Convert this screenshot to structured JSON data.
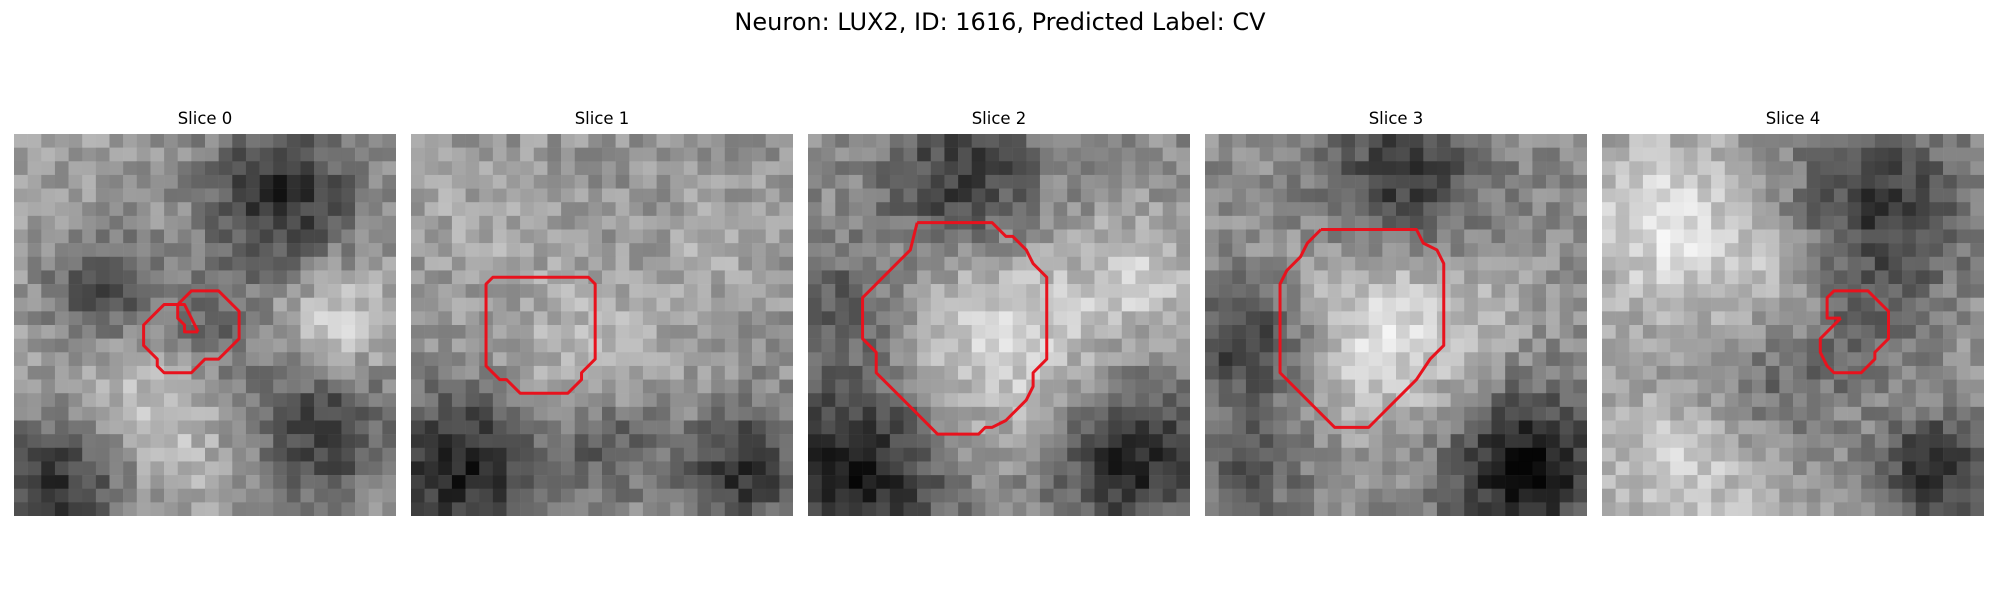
{
  "figure": {
    "title": "Neuron: LUX2, ID: 1616, Predicted Label: CV"
  },
  "colors": {
    "contour": "#e8121d",
    "background": "#ffffff"
  },
  "slices": [
    {
      "label": "Slice 0",
      "description": "Grayscale microscopy crop with a small red contour outlining a dark roundish region.",
      "contour_polygon": [
        [
          13.5,
          14.5
        ],
        [
          12.5,
          14.5
        ],
        [
          12.5,
          14.0
        ],
        [
          12.0,
          13.5
        ],
        [
          12.0,
          12.5
        ],
        [
          13.0,
          11.5
        ],
        [
          15.0,
          11.5
        ],
        [
          16.5,
          13.0
        ],
        [
          16.5,
          15.0
        ],
        [
          15.5,
          16.0
        ],
        [
          15.0,
          16.5
        ],
        [
          14.0,
          16.5
        ],
        [
          13.5,
          17.0
        ],
        [
          13.0,
          17.5
        ],
        [
          11.0,
          17.5
        ],
        [
          10.5,
          17.0
        ],
        [
          10.5,
          16.5
        ],
        [
          10.0,
          16.0
        ],
        [
          9.5,
          15.5
        ],
        [
          9.5,
          14.0
        ],
        [
          10.5,
          13.0
        ],
        [
          11.0,
          12.5
        ],
        [
          12.5,
          12.5
        ],
        [
          13.5,
          14.5
        ]
      ]
    },
    {
      "label": "Slice 1",
      "description": "Grayscale microscopy crop with a red rectangular-ish contour around a brighter central cell.",
      "contour_polygon": [
        [
          8.0,
          10.5
        ],
        [
          13.0,
          10.5
        ],
        [
          13.5,
          11.0
        ],
        [
          13.5,
          16.5
        ],
        [
          12.5,
          17.5
        ],
        [
          12.5,
          18.0
        ],
        [
          11.5,
          19.0
        ],
        [
          8.0,
          19.0
        ],
        [
          7.0,
          18.0
        ],
        [
          6.5,
          18.0
        ],
        [
          5.5,
          17.0
        ],
        [
          5.5,
          11.0
        ],
        [
          6.0,
          10.5
        ],
        [
          8.0,
          10.5
        ]
      ]
    },
    {
      "label": "Slice 2",
      "description": "Grayscale microscopy crop with a large red contour outlining a bright round cell body.",
      "contour_polygon": [
        [
          8.0,
          6.5
        ],
        [
          13.5,
          6.5
        ],
        [
          14.5,
          7.5
        ],
        [
          15.0,
          7.5
        ],
        [
          16.0,
          8.5
        ],
        [
          16.5,
          9.5
        ],
        [
          17.5,
          10.5
        ],
        [
          17.5,
          16.5
        ],
        [
          16.5,
          17.5
        ],
        [
          16.5,
          18.5
        ],
        [
          16.0,
          19.5
        ],
        [
          15.0,
          20.5
        ],
        [
          14.5,
          21.0
        ],
        [
          13.5,
          21.5
        ],
        [
          13.0,
          21.5
        ],
        [
          12.5,
          22.0
        ],
        [
          9.5,
          22.0
        ],
        [
          7.5,
          20.0
        ],
        [
          6.5,
          19.0
        ],
        [
          5.5,
          18.0
        ],
        [
          5.0,
          17.5
        ],
        [
          5.0,
          16.0
        ],
        [
          4.0,
          15.0
        ],
        [
          4.0,
          12.0
        ],
        [
          5.0,
          11.0
        ],
        [
          6.5,
          9.5
        ],
        [
          7.5,
          8.5
        ],
        [
          8.0,
          6.5
        ]
      ]
    },
    {
      "label": "Slice 3",
      "description": "Grayscale microscopy crop with a red contour around a bright round cell, truncated on the lower right by an oblique edge.",
      "contour_polygon": [
        [
          8.5,
          7.0
        ],
        [
          15.5,
          7.0
        ],
        [
          16.0,
          8.0
        ],
        [
          17.0,
          8.5
        ],
        [
          17.5,
          9.5
        ],
        [
          17.5,
          15.5
        ],
        [
          16.5,
          16.5
        ],
        [
          15.5,
          18.0
        ],
        [
          14.5,
          19.0
        ],
        [
          13.5,
          20.0
        ],
        [
          12.5,
          21.0
        ],
        [
          12.0,
          21.5
        ],
        [
          9.5,
          21.5
        ],
        [
          8.5,
          20.5
        ],
        [
          7.5,
          19.5
        ],
        [
          6.0,
          18.0
        ],
        [
          5.5,
          17.5
        ],
        [
          5.5,
          11.0
        ],
        [
          6.0,
          10.0
        ],
        [
          7.0,
          9.0
        ],
        [
          7.5,
          8.0
        ],
        [
          8.5,
          7.0
        ]
      ]
    },
    {
      "label": "Slice 4",
      "description": "Grayscale microscopy crop with a small red contour at right-center around a medium-gray blob.",
      "contour_polygon": [
        [
          17.5,
          13.5
        ],
        [
          16.5,
          13.5
        ],
        [
          16.5,
          12.0
        ],
        [
          17.0,
          11.5
        ],
        [
          19.5,
          11.5
        ],
        [
          20.5,
          12.5
        ],
        [
          21.0,
          13.0
        ],
        [
          21.0,
          15.0
        ],
        [
          20.0,
          16.0
        ],
        [
          20.0,
          16.5
        ],
        [
          19.0,
          17.5
        ],
        [
          17.0,
          17.5
        ],
        [
          16.5,
          17.0
        ],
        [
          16.0,
          16.0
        ],
        [
          16.0,
          15.0
        ],
        [
          16.5,
          14.5
        ],
        [
          17.5,
          13.5
        ]
      ]
    }
  ],
  "grid_size": 28
}
